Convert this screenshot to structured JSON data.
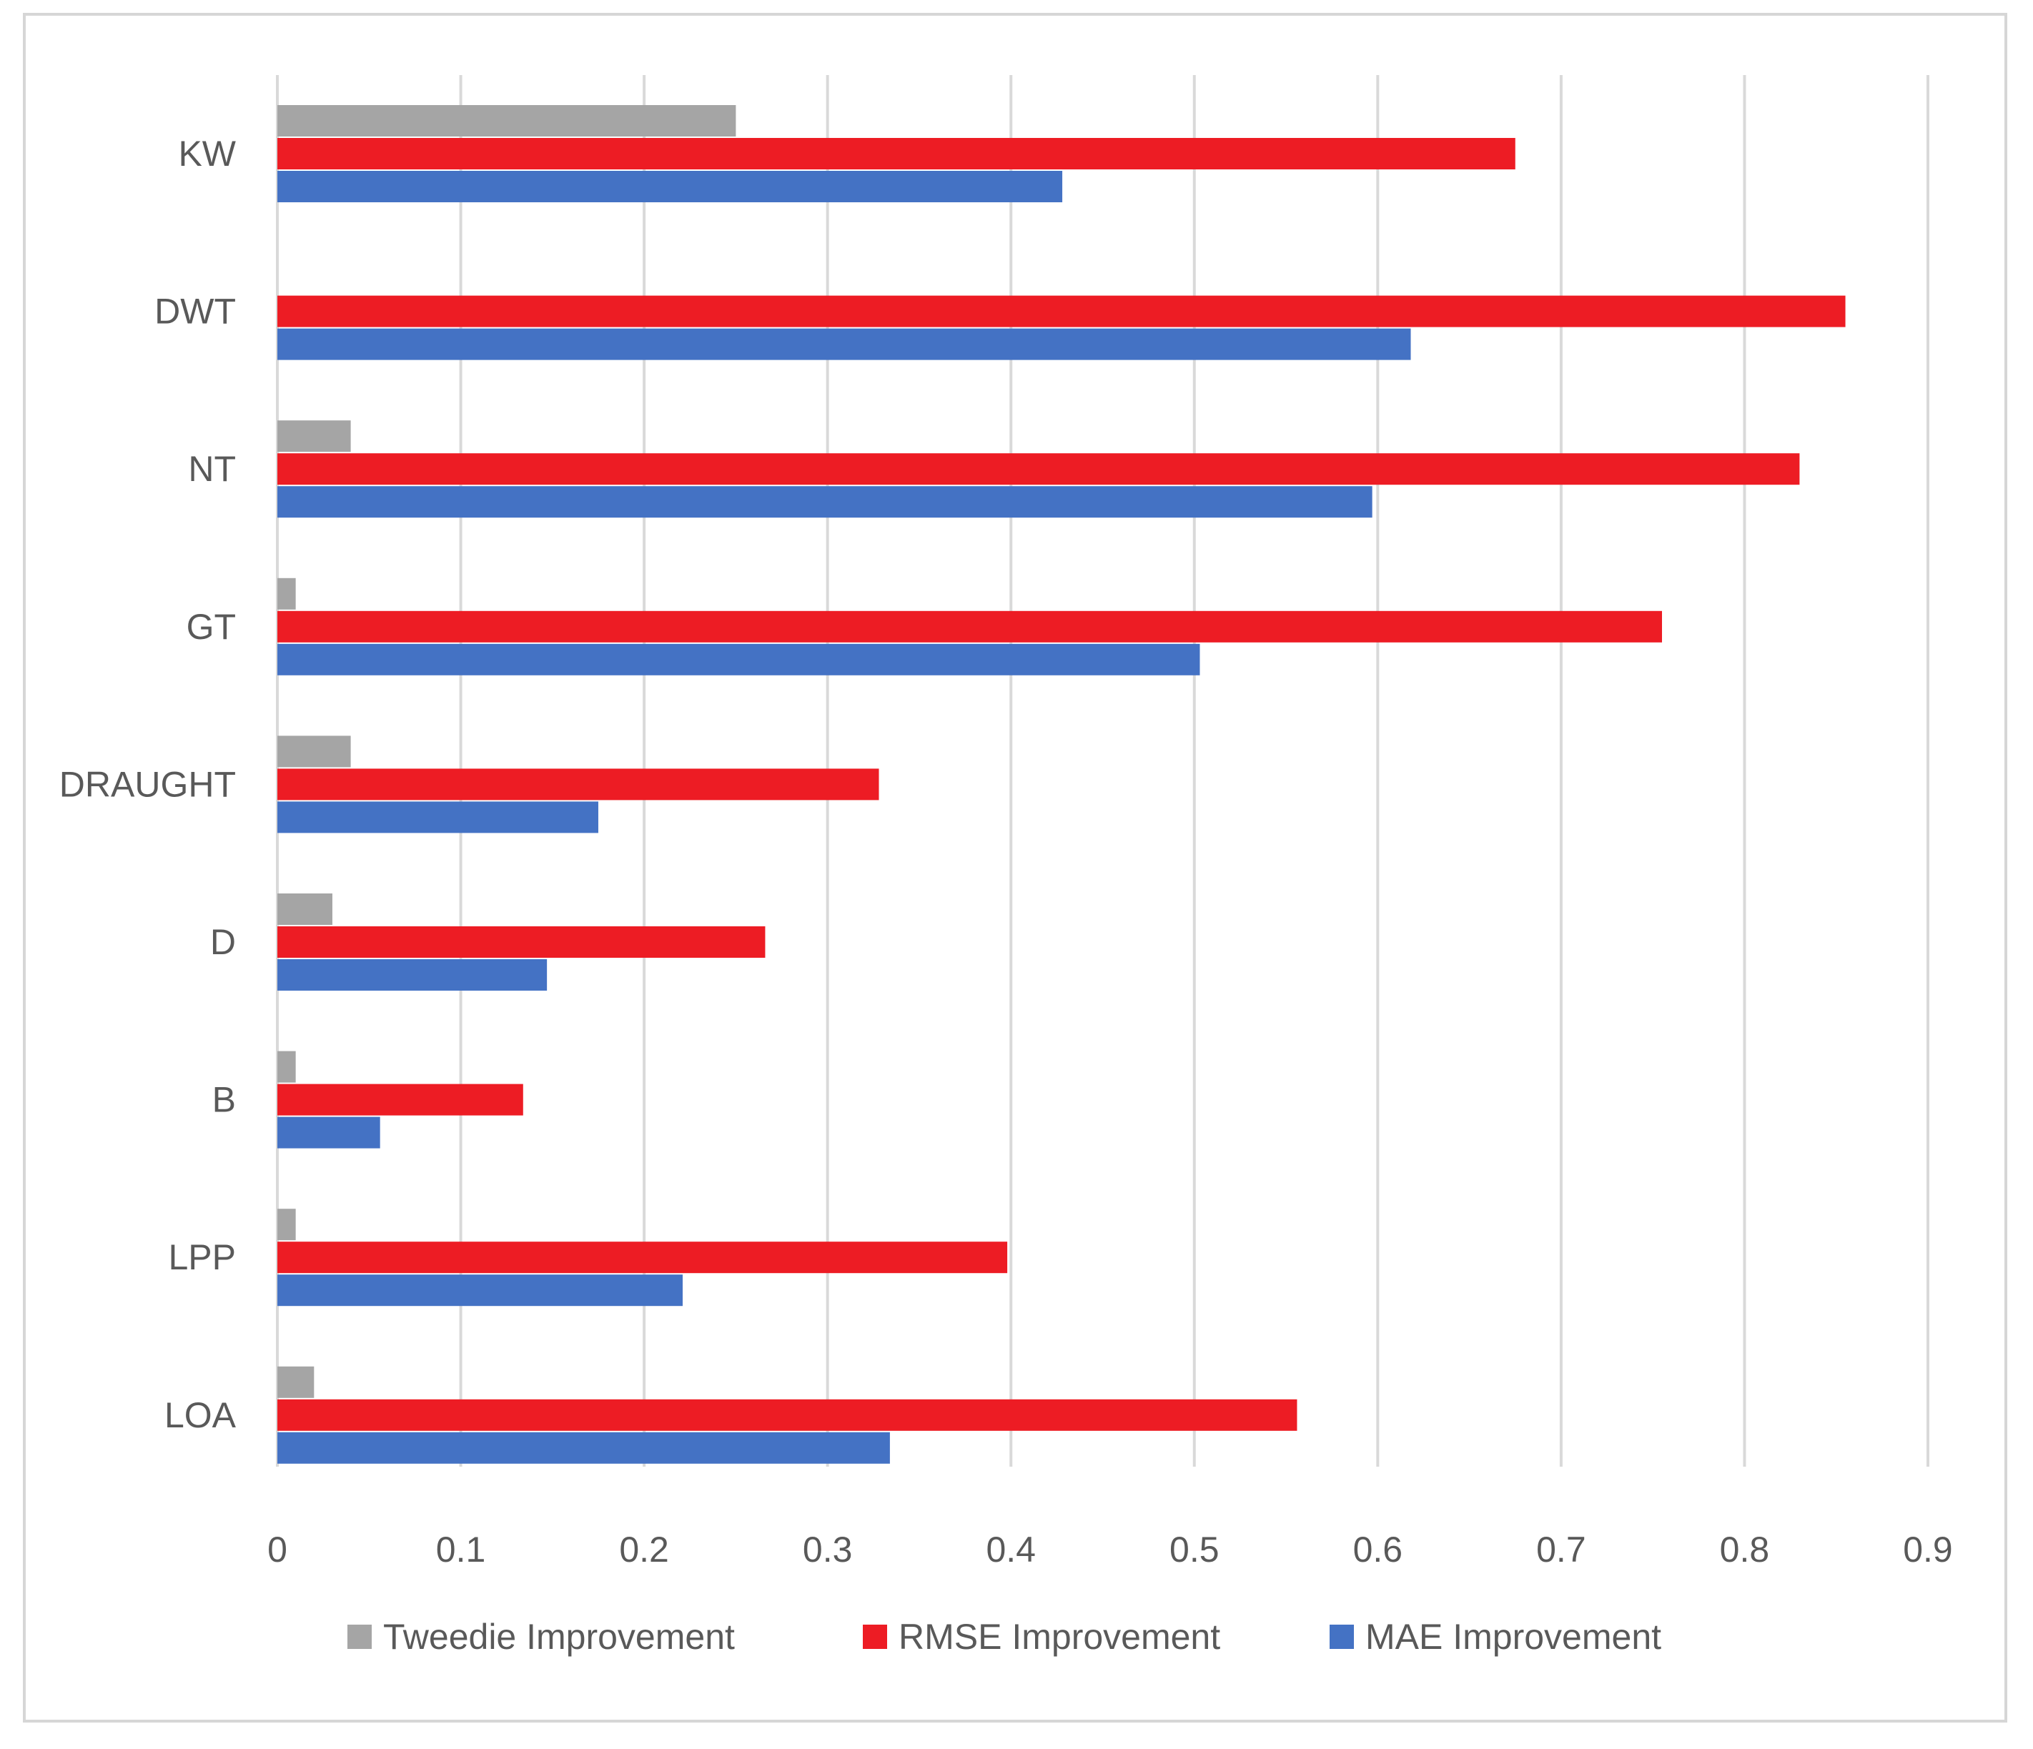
{
  "chart_data": {
    "type": "bar",
    "orientation": "horizontal",
    "title": "",
    "xlabel": "",
    "ylabel": "",
    "xlim": [
      0,
      0.9
    ],
    "x_ticks": [
      0,
      0.1,
      0.2,
      0.3,
      0.4,
      0.5,
      0.6,
      0.7,
      0.8,
      0.9
    ],
    "x_tick_labels": [
      "0",
      "0.1",
      "0.2",
      "0.3",
      "0.4",
      "0.5",
      "0.6",
      "0.7",
      "0.8",
      "0.9"
    ],
    "grid": true,
    "legend_position": "bottom",
    "categories": [
      "KW",
      "DWT",
      "NT",
      "GT",
      "DRAUGHT",
      "D",
      "B",
      "LPP",
      "LOA"
    ],
    "series": [
      {
        "name": "Tweedie Improvement",
        "color": "#a5a5a5",
        "values": [
          0.25,
          0,
          0.04,
          0.01,
          0.04,
          0.03,
          0.01,
          0.01,
          0.02
        ]
      },
      {
        "name": "RMSE Improvement",
        "color": "#ed1c24",
        "values": [
          0.675,
          0.855,
          0.83,
          0.755,
          0.328,
          0.266,
          0.134,
          0.398,
          0.556
        ]
      },
      {
        "name": "MAE Improvement",
        "color": "#4472c4",
        "values": [
          0.428,
          0.618,
          0.597,
          0.503,
          0.175,
          0.147,
          0.056,
          0.221,
          0.334
        ]
      }
    ]
  }
}
